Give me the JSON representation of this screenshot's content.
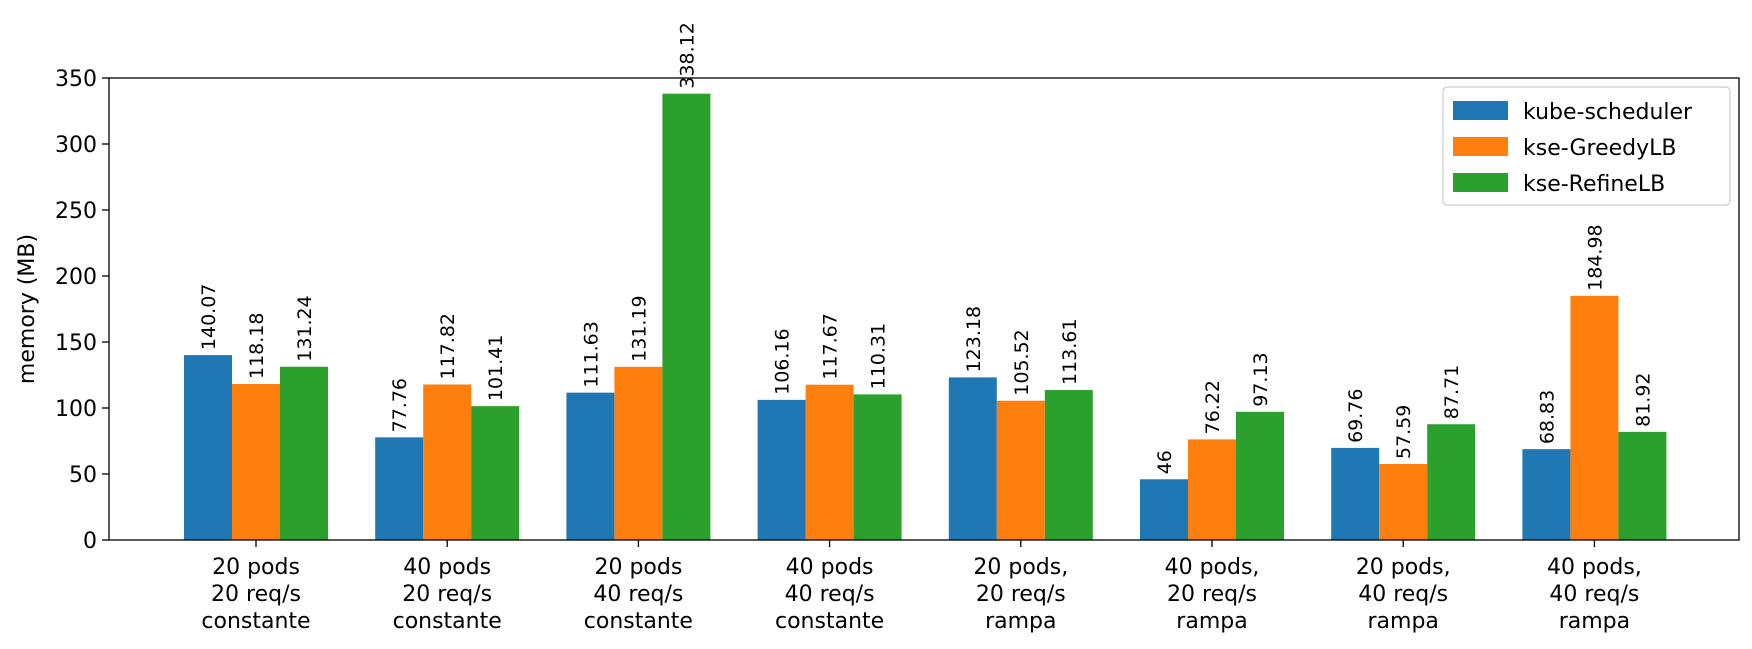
{
  "chart_data": {
    "type": "bar",
    "title": "",
    "xlabel": "",
    "ylabel": "memory (MB)",
    "ylim": [
      0,
      350
    ],
    "yticks": [
      0,
      50,
      100,
      150,
      200,
      250,
      300,
      350
    ],
    "grid": false,
    "legend_position": "top-right",
    "categories": [
      [
        "20 pods",
        "20 req/s",
        "constante"
      ],
      [
        "40 pods",
        "20 req/s",
        "constante"
      ],
      [
        "20 pods",
        "40 req/s",
        "constante"
      ],
      [
        "40 pods",
        "40 req/s",
        "constante"
      ],
      [
        "20 pods,",
        "20 req/s",
        "rampa"
      ],
      [
        "40 pods,",
        "20 req/s",
        "rampa"
      ],
      [
        "20 pods,",
        "40 req/s",
        "rampa"
      ],
      [
        "40 pods,",
        "40 req/s",
        "rampa"
      ]
    ],
    "series": [
      {
        "name": "kube-scheduler",
        "color": "#1f77b4",
        "values": [
          140.07,
          77.76,
          111.63,
          106.16,
          123.18,
          46,
          69.76,
          68.83
        ],
        "labels": [
          "140.07",
          "77.76",
          "111.63",
          "106.16",
          "123.18",
          "46",
          "69.76",
          "68.83"
        ]
      },
      {
        "name": "kse-GreedyLB",
        "color": "#ff7f0e",
        "values": [
          118.18,
          117.82,
          131.19,
          117.67,
          105.52,
          76.22,
          57.59,
          184.98
        ],
        "labels": [
          "118.18",
          "117.82",
          "131.19",
          "117.67",
          "105.52",
          "76.22",
          "57.59",
          "184.98"
        ]
      },
      {
        "name": "kse-RefineLB",
        "color": "#2ca02c",
        "values": [
          131.24,
          101.41,
          338.12,
          110.31,
          113.61,
          97.13,
          87.71,
          81.92
        ],
        "labels": [
          "131.24",
          "101.41",
          "338.12",
          "110.31",
          "113.61",
          "97.13",
          "87.71",
          "81.92"
        ]
      }
    ]
  }
}
